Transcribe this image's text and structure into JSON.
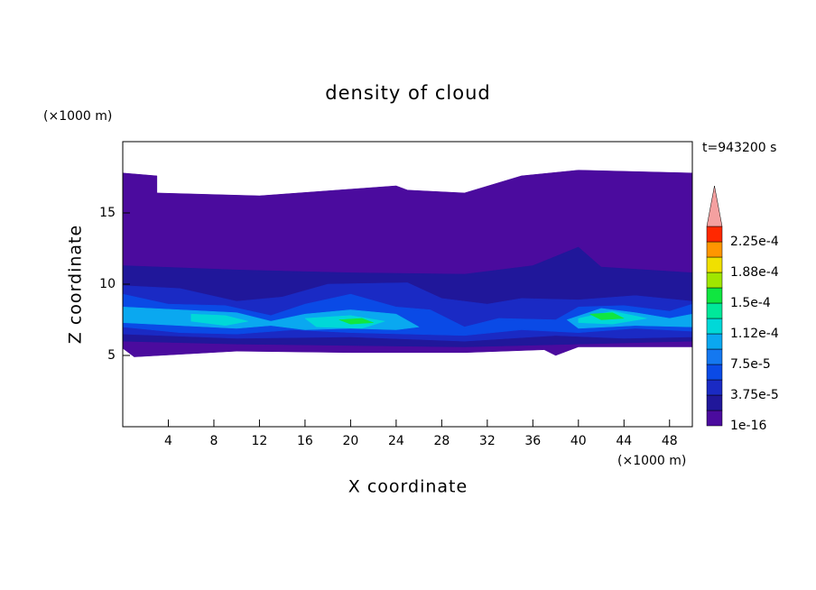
{
  "chart_data": {
    "type": "contour",
    "title": "density of cloud",
    "x_label": "X coordinate",
    "y_label": "Z coordinate",
    "x_unit": "(×1000 m)",
    "y_unit": "(×1000 m)",
    "annotation": "t=943200 s",
    "xlim": [
      0,
      50
    ],
    "xticks": [
      4,
      8,
      12,
      16,
      20,
      24,
      28,
      32,
      36,
      40,
      44,
      48
    ],
    "ylim": [
      0,
      20
    ],
    "yticks": [
      5,
      10,
      15
    ],
    "levels": [
      1e-16,
      1.875e-05,
      3.75e-05,
      5.625e-05,
      7.5e-05,
      9.375e-05,
      0.0001125,
      0.00013125,
      0.00015,
      0.00016875,
      0.0001875,
      0.00020625,
      0.000225,
      0.00024375
    ],
    "colors": [
      "#4b0b9e",
      "#20179a",
      "#1a2ac4",
      "#0a4ae6",
      "#1478f0",
      "#0aa8f0",
      "#00d8d8",
      "#00e89a",
      "#10e640",
      "#a0e600",
      "#f0e000",
      "#ff9600",
      "#ff2800"
    ],
    "extend_color": "#f4a0a0",
    "colorbar_ticks": [
      1e-16,
      {
        "value": 3.75e-05,
        "label": "3.75e-5"
      },
      {
        "value": 7.5e-05,
        "label": "7.5e-5"
      },
      {
        "value": 0.0001125,
        "label": "1.12e-4"
      },
      {
        "value": 0.00015,
        "label": "1.5e-4"
      },
      {
        "value": 0.0001875,
        "label": "1.88e-4"
      },
      {
        "value": 0.000225,
        "label": "2.25e-4"
      }
    ],
    "regions": [
      {
        "level": 1e-16,
        "x": [
          0,
          3,
          3,
          12,
          24,
          25,
          30,
          35,
          40,
          50,
          50,
          40,
          38,
          37,
          30,
          20,
          10,
          1,
          0
        ],
        "z": [
          17.8,
          17.6,
          16.4,
          16.2,
          16.9,
          16.6,
          16.4,
          17.6,
          18.0,
          17.8,
          5.6,
          5.6,
          5.0,
          5.4,
          5.2,
          5.2,
          5.3,
          4.9,
          5.5
        ]
      },
      {
        "level": 1.875e-05,
        "x": [
          0,
          10,
          20,
          30,
          36,
          40,
          42,
          50,
          50,
          40,
          30,
          20,
          10,
          0
        ],
        "z": [
          11.3,
          11,
          10.8,
          10.7,
          11.3,
          12.6,
          11.2,
          10.8,
          6,
          5.8,
          5.6,
          5.7,
          5.8,
          6.0
        ]
      },
      {
        "level": 3.75e-05,
        "x": [
          0,
          5,
          10,
          14,
          18,
          25,
          28,
          32,
          35,
          40,
          45,
          50,
          50,
          44,
          38,
          30,
          20,
          10,
          0
        ],
        "z": [
          9.9,
          9.7,
          8.8,
          9.1,
          10,
          10.1,
          9,
          8.6,
          9,
          8.9,
          9.2,
          8.8,
          6.3,
          6.2,
          6.4,
          6.0,
          6.3,
          6.2,
          6.5
        ]
      },
      {
        "level": 5.625e-05,
        "x": [
          0,
          4,
          9,
          13,
          16,
          20,
          24,
          27,
          30,
          33,
          38,
          40,
          44,
          48,
          50,
          50,
          45,
          40,
          35,
          30,
          25,
          20,
          15,
          10,
          5,
          0
        ],
        "z": [
          9.3,
          8.6,
          8.5,
          7.8,
          8.6,
          9.3,
          8.4,
          8.2,
          7.0,
          7.6,
          7.5,
          8.4,
          8.5,
          8.1,
          8.6,
          6.7,
          6.9,
          6.6,
          6.8,
          6.4,
          6.5,
          6.6,
          6.8,
          6.5,
          6.6,
          7
        ]
      },
      {
        "level": 9.375e-05,
        "x": [
          0,
          5,
          10,
          13,
          16,
          20,
          24,
          26,
          24,
          20,
          16,
          13,
          10,
          5,
          0
        ],
        "z": [
          8.4,
          8.2,
          8,
          7.4,
          7.9,
          8.2,
          7.9,
          7,
          6.8,
          6.9,
          6.8,
          7.1,
          6.9,
          7.1,
          7.3
        ]
      },
      {
        "level": 9.375e-05,
        "x": [
          39,
          42,
          45,
          48,
          50,
          50,
          45,
          40
        ],
        "z": [
          7.5,
          8.3,
          8.0,
          7.6,
          7.9,
          7.0,
          7.1,
          6.9
        ]
      },
      {
        "level": 0.0001125,
        "x": [
          6,
          9,
          11,
          9,
          6
        ],
        "z": [
          7.9,
          7.8,
          7.4,
          7.1,
          7.4
        ]
      },
      {
        "level": 0.0001125,
        "x": [
          16,
          20,
          23,
          21,
          17
        ],
        "z": [
          7.6,
          7.8,
          7.4,
          6.9,
          7.0
        ]
      },
      {
        "level": 0.0001125,
        "x": [
          40,
          43,
          46,
          43,
          40
        ],
        "z": [
          7.6,
          8.1,
          7.6,
          7.2,
          7.3
        ]
      },
      {
        "level": 0.00015,
        "x": [
          19,
          21,
          22,
          20
        ],
        "z": [
          7.5,
          7.6,
          7.3,
          7.2
        ]
      },
      {
        "level": 0.00015,
        "x": [
          41,
          43,
          44,
          42
        ],
        "z": [
          7.9,
          8.0,
          7.6,
          7.5
        ]
      }
    ]
  }
}
